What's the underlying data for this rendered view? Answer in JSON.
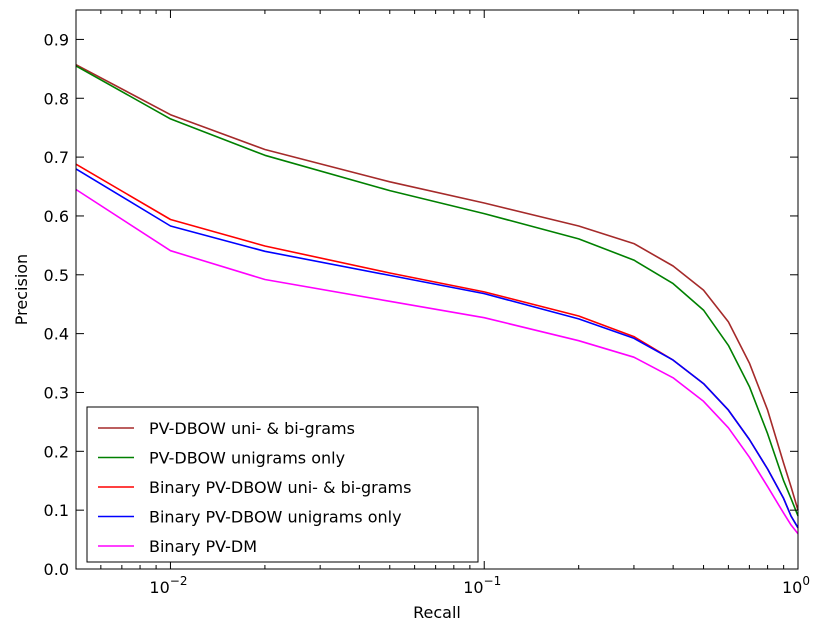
{
  "chart_data": {
    "type": "line",
    "x_scale": "log",
    "xlabel": "Recall",
    "ylabel": "Precision",
    "xlim": [
      0.005,
      1.0
    ],
    "ylim": [
      0.0,
      0.95
    ],
    "x_ticks": [
      {
        "value": 0.01,
        "base": "10",
        "exp": "−2"
      },
      {
        "value": 0.1,
        "base": "10",
        "exp": "−1"
      },
      {
        "value": 1.0,
        "base": "10",
        "exp": "0"
      }
    ],
    "y_ticks": [
      {
        "value": 0.0,
        "label": "0.0"
      },
      {
        "value": 0.1,
        "label": "0.1"
      },
      {
        "value": 0.2,
        "label": "0.2"
      },
      {
        "value": 0.3,
        "label": "0.3"
      },
      {
        "value": 0.4,
        "label": "0.4"
      },
      {
        "value": 0.5,
        "label": "0.5"
      },
      {
        "value": 0.6,
        "label": "0.6"
      },
      {
        "value": 0.7,
        "label": "0.7"
      },
      {
        "value": 0.8,
        "label": "0.8"
      },
      {
        "value": 0.9,
        "label": "0.9"
      }
    ],
    "legend_position": "lower-left",
    "series": [
      {
        "name": "PV-DBOW uni- & bi-grams",
        "color": "#a52a2a",
        "x": [
          0.005,
          0.01,
          0.02,
          0.05,
          0.1,
          0.2,
          0.3,
          0.4,
          0.5,
          0.6,
          0.7,
          0.8,
          0.9,
          0.95,
          1.0
        ],
        "y": [
          0.857,
          0.772,
          0.713,
          0.658,
          0.622,
          0.583,
          0.553,
          0.515,
          0.474,
          0.42,
          0.35,
          0.27,
          0.18,
          0.14,
          0.1
        ]
      },
      {
        "name": "PV-DBOW unigrams only",
        "color": "#008000",
        "x": [
          0.005,
          0.01,
          0.02,
          0.05,
          0.1,
          0.2,
          0.3,
          0.4,
          0.5,
          0.6,
          0.7,
          0.8,
          0.9,
          0.95,
          1.0
        ],
        "y": [
          0.855,
          0.765,
          0.703,
          0.643,
          0.604,
          0.561,
          0.525,
          0.485,
          0.44,
          0.38,
          0.31,
          0.23,
          0.15,
          0.12,
          0.09
        ]
      },
      {
        "name": "Binary PV-DBOW uni- & bi-grams",
        "color": "#ff0000",
        "x": [
          0.005,
          0.01,
          0.02,
          0.05,
          0.1,
          0.2,
          0.3,
          0.4,
          0.5,
          0.6,
          0.7,
          0.8,
          0.9,
          0.95,
          1.0
        ],
        "y": [
          0.688,
          0.594,
          0.549,
          0.503,
          0.471,
          0.43,
          0.395,
          0.355,
          0.315,
          0.27,
          0.22,
          0.17,
          0.12,
          0.09,
          0.07
        ]
      },
      {
        "name": "Binary PV-DBOW unigrams only",
        "color": "#0000ff",
        "x": [
          0.005,
          0.01,
          0.02,
          0.05,
          0.1,
          0.2,
          0.3,
          0.4,
          0.5,
          0.6,
          0.7,
          0.8,
          0.9,
          0.95,
          1.0
        ],
        "y": [
          0.68,
          0.583,
          0.54,
          0.499,
          0.468,
          0.425,
          0.392,
          0.355,
          0.315,
          0.27,
          0.22,
          0.17,
          0.12,
          0.09,
          0.07
        ]
      },
      {
        "name": "Binary PV-DM",
        "color": "#ff00ff",
        "x": [
          0.005,
          0.01,
          0.02,
          0.05,
          0.1,
          0.2,
          0.3,
          0.4,
          0.5,
          0.6,
          0.7,
          0.8,
          0.9,
          0.95,
          1.0
        ],
        "y": [
          0.645,
          0.541,
          0.492,
          0.455,
          0.427,
          0.388,
          0.36,
          0.325,
          0.285,
          0.24,
          0.19,
          0.14,
          0.095,
          0.075,
          0.06
        ]
      }
    ]
  }
}
